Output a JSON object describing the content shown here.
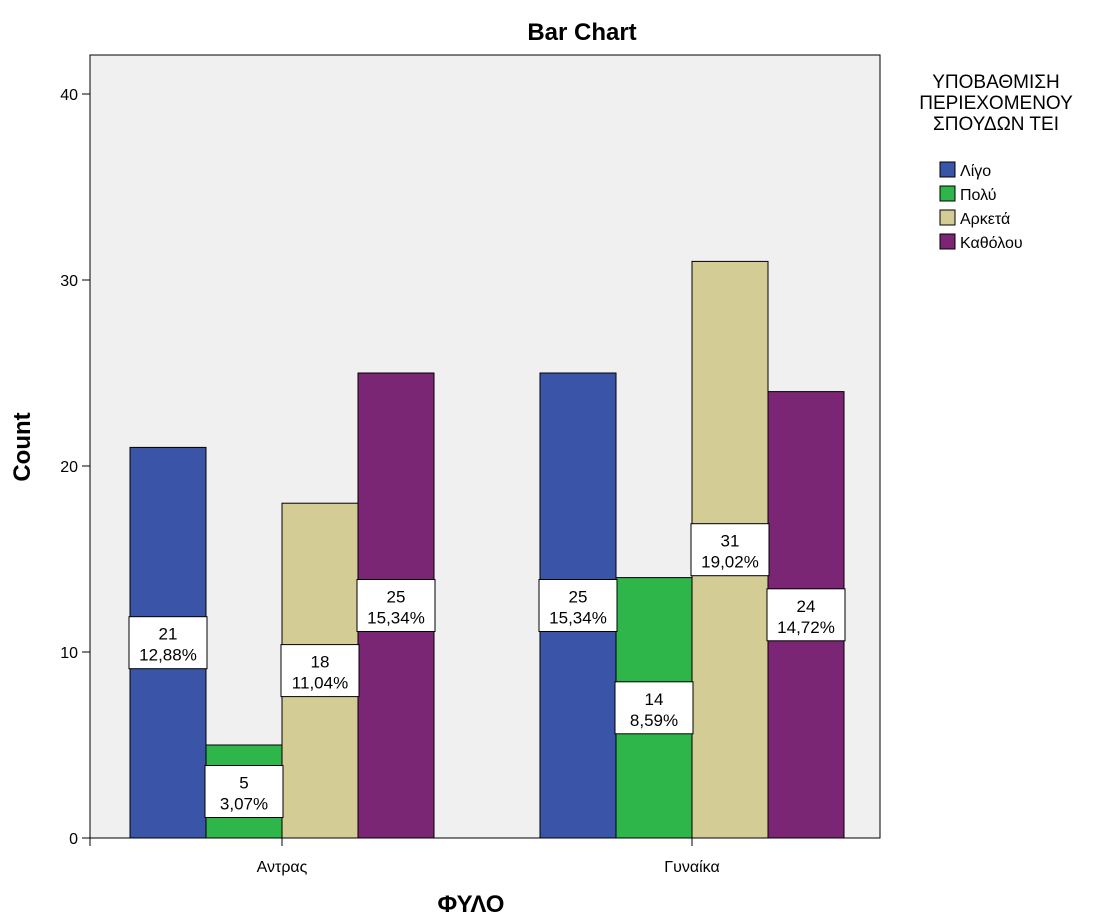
{
  "chart_data": {
    "type": "bar",
    "title": "Bar Chart",
    "xlabel": "ΦΥΛΟ",
    "ylabel": "Count",
    "categories": [
      "Αντρας",
      "Γυναίκα"
    ],
    "ylim": [
      0,
      42
    ],
    "yticks": [
      0,
      10,
      20,
      30,
      40
    ],
    "grid": false,
    "legend": {
      "title_lines": [
        "ΥΠΟΒΑΘΜΙΣΗ",
        "ΠΕΡΙΕΧΟΜΕΝΟΥ",
        "ΣΠΟΥΔΩΝ ΤΕΙ"
      ],
      "position": "right"
    },
    "series": [
      {
        "name": "Λίγο",
        "color": "#3a54a8",
        "values": [
          21,
          25
        ],
        "percent_labels": [
          "12,88%",
          "15,34%"
        ]
      },
      {
        "name": "Πολύ",
        "color": "#2fb64a",
        "values": [
          5,
          14
        ],
        "percent_labels": [
          "3,07%",
          "8,59%"
        ]
      },
      {
        "name": "Αρκετά",
        "color": "#d3cd95",
        "values": [
          18,
          31
        ],
        "percent_labels": [
          "11,04%",
          "19,02%"
        ]
      },
      {
        "name": "Καθόλου",
        "color": "#7b2575",
        "values": [
          25,
          24
        ],
        "percent_labels": [
          "15,34%",
          "14,72%"
        ]
      }
    ]
  }
}
